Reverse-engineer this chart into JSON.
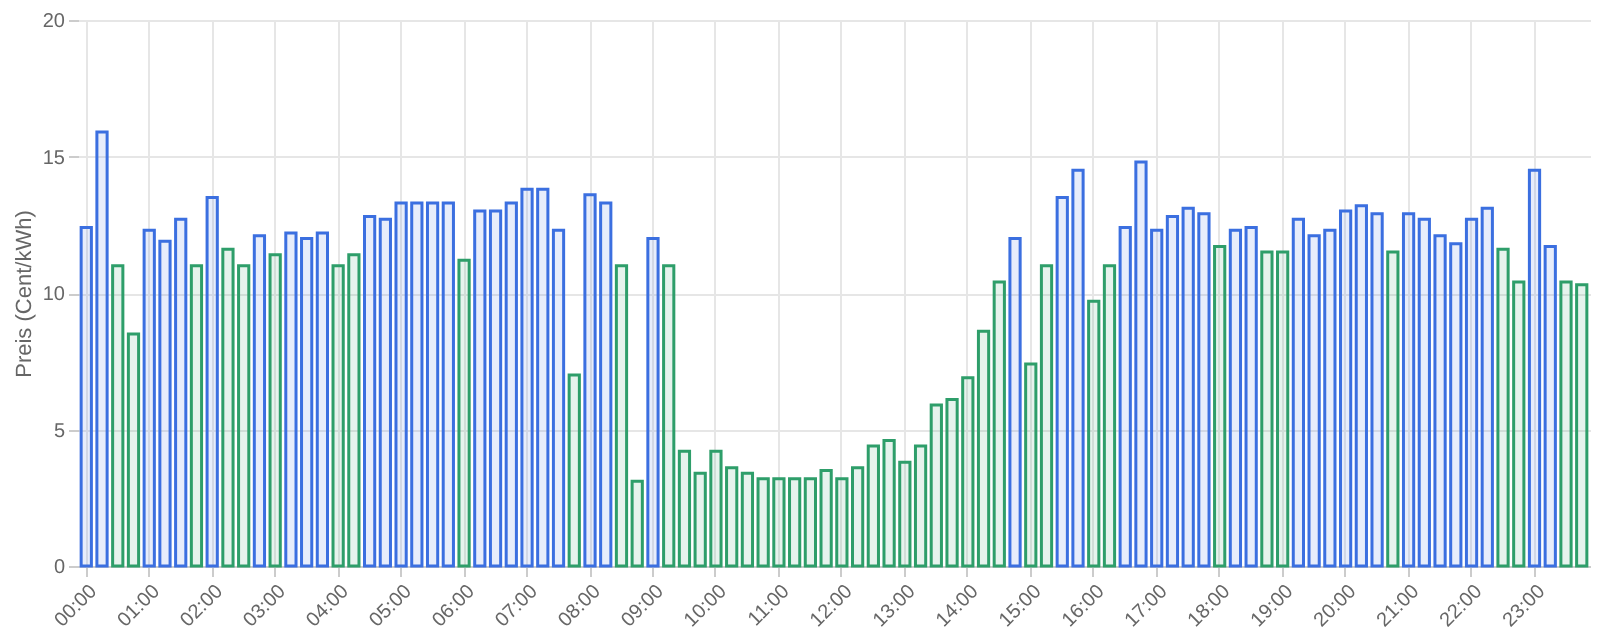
{
  "chart_data": {
    "type": "bar",
    "ylabel": "Preis (Cent/kWh)",
    "categories": [
      "00:00",
      null,
      null,
      null,
      "01:00",
      null,
      null,
      null,
      "02:00",
      null,
      null,
      null,
      "03:00",
      null,
      null,
      null,
      "04:00",
      null,
      null,
      null,
      "05:00",
      null,
      null,
      null,
      "06:00",
      null,
      null,
      null,
      "07:00",
      null,
      null,
      null,
      "08:00",
      null,
      null,
      null,
      "09:00",
      null,
      null,
      null,
      "10:00",
      null,
      null,
      null,
      "11:00",
      null,
      null,
      null,
      "12:00",
      null,
      null,
      null,
      "13:00",
      null,
      null,
      null,
      "14:00",
      null,
      null,
      null,
      "15:00",
      null,
      null,
      null,
      "16:00",
      null,
      null,
      null,
      "17:00",
      null,
      null,
      null,
      "18:00",
      null,
      null,
      null,
      "19:00",
      null,
      null,
      null,
      "20:00",
      null,
      null,
      null,
      "21:00",
      null,
      null,
      null,
      "22:00",
      null,
      null,
      null,
      "23:00",
      null,
      null,
      null
    ],
    "values": [
      12.4,
      15.9,
      11.0,
      8.5,
      12.3,
      11.9,
      12.7,
      11.0,
      13.5,
      11.6,
      11.0,
      12.1,
      11.4,
      12.2,
      12.0,
      12.2,
      11.0,
      11.4,
      12.8,
      12.7,
      13.3,
      13.3,
      13.3,
      13.3,
      11.2,
      13.0,
      13.0,
      13.3,
      13.8,
      13.8,
      12.3,
      7.0,
      13.6,
      13.3,
      11.0,
      3.1,
      12.0,
      11.0,
      4.2,
      3.4,
      4.2,
      3.6,
      3.4,
      3.2,
      3.2,
      3.2,
      3.2,
      3.5,
      3.2,
      3.6,
      4.4,
      4.6,
      3.8,
      4.4,
      5.9,
      6.1,
      6.9,
      8.6,
      10.4,
      12.0,
      7.4,
      11.0,
      13.5,
      14.5,
      9.7,
      11.0,
      12.4,
      14.8,
      12.3,
      12.8,
      13.1,
      12.9,
      11.7,
      12.3,
      12.4,
      11.5,
      11.5,
      12.7,
      12.1,
      12.3,
      13.0,
      13.2,
      12.9,
      11.5,
      12.9,
      12.7,
      12.1,
      11.8,
      12.7,
      13.1,
      11.6,
      10.4,
      14.5,
      11.7,
      10.4,
      10.3
    ],
    "colors": [
      "#3b6fe0",
      "#3b6fe0",
      "#2e9e6a",
      "#2e9e6a",
      "#3b6fe0",
      "#3b6fe0",
      "#3b6fe0",
      "#2e9e6a",
      "#3b6fe0",
      "#2e9e6a",
      "#2e9e6a",
      "#3b6fe0",
      "#2e9e6a",
      "#3b6fe0",
      "#3b6fe0",
      "#3b6fe0",
      "#2e9e6a",
      "#2e9e6a",
      "#3b6fe0",
      "#3b6fe0",
      "#3b6fe0",
      "#3b6fe0",
      "#3b6fe0",
      "#3b6fe0",
      "#2e9e6a",
      "#3b6fe0",
      "#3b6fe0",
      "#3b6fe0",
      "#3b6fe0",
      "#3b6fe0",
      "#3b6fe0",
      "#2e9e6a",
      "#3b6fe0",
      "#3b6fe0",
      "#2e9e6a",
      "#2e9e6a",
      "#3b6fe0",
      "#2e9e6a",
      "#2e9e6a",
      "#2e9e6a",
      "#2e9e6a",
      "#2e9e6a",
      "#2e9e6a",
      "#2e9e6a",
      "#2e9e6a",
      "#2e9e6a",
      "#2e9e6a",
      "#2e9e6a",
      "#2e9e6a",
      "#2e9e6a",
      "#2e9e6a",
      "#2e9e6a",
      "#2e9e6a",
      "#2e9e6a",
      "#2e9e6a",
      "#2e9e6a",
      "#2e9e6a",
      "#2e9e6a",
      "#2e9e6a",
      "#3b6fe0",
      "#2e9e6a",
      "#2e9e6a",
      "#3b6fe0",
      "#3b6fe0",
      "#2e9e6a",
      "#2e9e6a",
      "#3b6fe0",
      "#3b6fe0",
      "#3b6fe0",
      "#3b6fe0",
      "#3b6fe0",
      "#3b6fe0",
      "#2e9e6a",
      "#3b6fe0",
      "#3b6fe0",
      "#2e9e6a",
      "#2e9e6a",
      "#3b6fe0",
      "#3b6fe0",
      "#3b6fe0",
      "#3b6fe0",
      "#3b6fe0",
      "#3b6fe0",
      "#2e9e6a",
      "#3b6fe0",
      "#3b6fe0",
      "#3b6fe0",
      "#3b6fe0",
      "#3b6fe0",
      "#3b6fe0",
      "#2e9e6a",
      "#2e9e6a",
      "#3b6fe0",
      "#3b6fe0",
      "#2e9e6a",
      "#2e9e6a"
    ],
    "ylim": [
      0,
      20
    ],
    "yticks": [
      0,
      5,
      10,
      15,
      20
    ],
    "grid": true,
    "legend": false
  }
}
